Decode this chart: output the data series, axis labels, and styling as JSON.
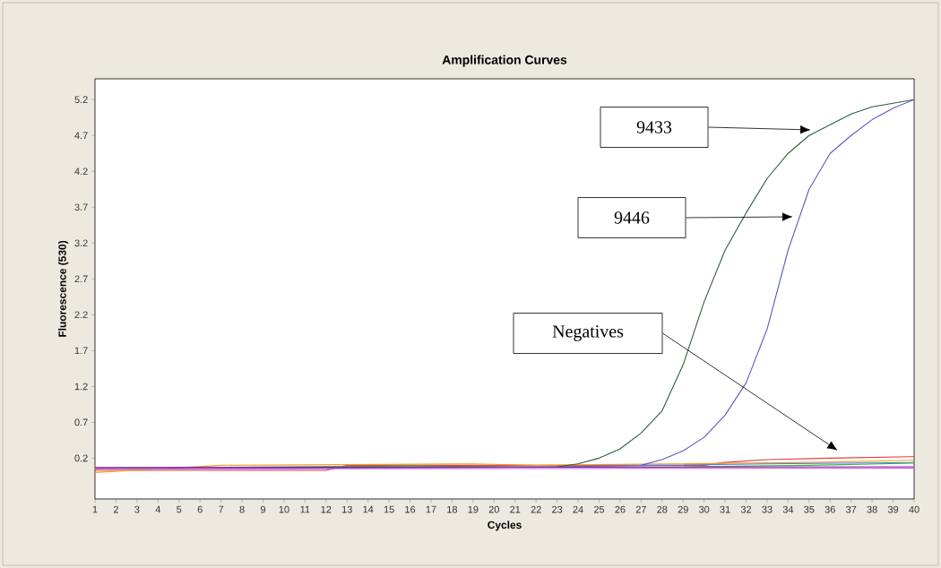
{
  "chart_data": {
    "type": "line",
    "title": "Amplification Curves",
    "xlabel": "Cycles",
    "ylabel": "Fluorescence (530)",
    "xlim": [
      1,
      40
    ],
    "xticks": [
      1,
      2,
      3,
      4,
      5,
      6,
      7,
      8,
      9,
      10,
      11,
      12,
      13,
      14,
      15,
      16,
      17,
      18,
      19,
      20,
      21,
      22,
      23,
      24,
      25,
      26,
      27,
      28,
      29,
      30,
      31,
      32,
      33,
      34,
      35,
      36,
      37,
      38,
      39,
      40
    ],
    "ylim": [
      -0.37,
      5.49
    ],
    "yticks": [
      0.2,
      0.7,
      1.2,
      1.7,
      2.2,
      2.7,
      3.2,
      3.7,
      4.2,
      4.7,
      5.2
    ],
    "grid": false,
    "marker": "none",
    "line_style": "solid",
    "series": [
      {
        "color": "#e03c3c",
        "x": [
          1,
          12,
          13,
          30,
          31,
          33,
          36,
          40
        ],
        "values": [
          0.03,
          0.03,
          0.1,
          0.1,
          0.14,
          0.18,
          0.2,
          0.22
        ]
      },
      {
        "color": "#f0a030",
        "x": [
          1,
          7,
          19,
          22,
          35,
          40
        ],
        "values": [
          0.0,
          0.1,
          0.12,
          0.1,
          0.14,
          0.17
        ]
      },
      {
        "color": "#4a78e0",
        "x": [
          1,
          20,
          28,
          33,
          40
        ],
        "values": [
          0.05,
          0.07,
          0.1,
          0.12,
          0.14
        ]
      },
      {
        "color": "#40b040",
        "x": [
          1,
          16,
          27,
          35,
          40
        ],
        "values": [
          0.06,
          0.09,
          0.07,
          0.1,
          0.13
        ]
      },
      {
        "color": "#e040e0",
        "x": [
          1,
          40
        ],
        "values": [
          0.05,
          0.06
        ]
      },
      {
        "color": "#8020a0",
        "x": [
          1,
          40
        ],
        "values": [
          0.07,
          0.08
        ]
      },
      {
        "color": "#2f5f3a",
        "x": [
          23,
          24,
          25,
          26,
          27,
          28,
          29,
          30,
          31,
          32,
          33,
          34,
          35,
          36,
          37,
          38,
          39,
          40
        ],
        "values": [
          0.08,
          0.12,
          0.2,
          0.33,
          0.55,
          0.86,
          1.5,
          2.38,
          3.1,
          3.62,
          4.1,
          4.45,
          4.7,
          4.85,
          5.0,
          5.1,
          5.15,
          5.2
        ]
      },
      {
        "color": "#5a5ac8",
        "x": [
          27,
          28,
          29,
          30,
          31,
          32,
          33,
          34,
          35,
          36,
          37,
          38,
          39,
          40
        ],
        "values": [
          0.1,
          0.18,
          0.3,
          0.49,
          0.8,
          1.25,
          2.0,
          3.1,
          3.95,
          4.45,
          4.7,
          4.92,
          5.08,
          5.2
        ]
      }
    ],
    "annotations": [
      "9433",
      "9446",
      "Negatives"
    ]
  }
}
